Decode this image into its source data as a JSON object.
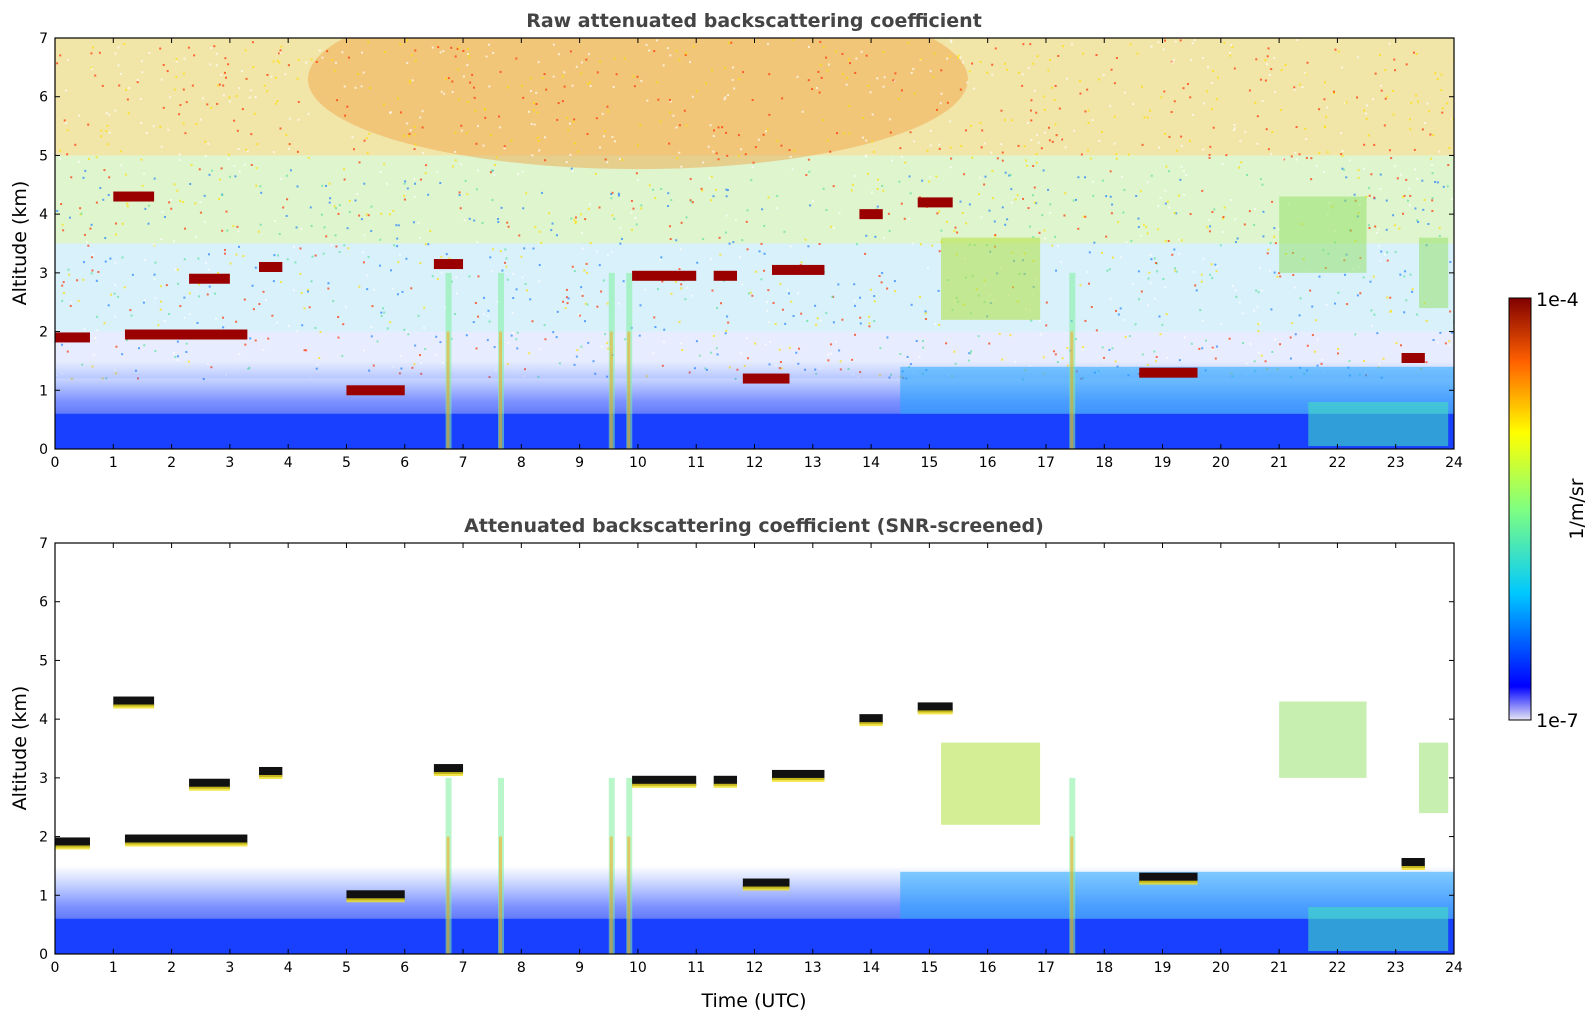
{
  "chart_data": [
    {
      "type": "heatmap",
      "title": "Raw attenuated backscattering coefficient",
      "xlabel": "",
      "ylabel": "Altitude (km)",
      "xlim": [
        0,
        24
      ],
      "ylim": [
        0,
        7
      ],
      "x_ticks": [
        "0",
        "1",
        "2",
        "3",
        "4",
        "5",
        "6",
        "7",
        "8",
        "9",
        "10",
        "11",
        "12",
        "13",
        "14",
        "15",
        "16",
        "17",
        "18",
        "19",
        "20",
        "21",
        "22",
        "23",
        "24"
      ],
      "y_ticks": [
        "0",
        "1",
        "2",
        "3",
        "4",
        "5",
        "6",
        "7"
      ],
      "cloud_layers": [
        {
          "t_start": 0.0,
          "t_end": 0.6,
          "alt_km": 1.9
        },
        {
          "t_start": 1.0,
          "t_end": 1.7,
          "alt_km": 4.3
        },
        {
          "t_start": 1.2,
          "t_end": 3.3,
          "alt_km": 1.95
        },
        {
          "t_start": 2.3,
          "t_end": 3.0,
          "alt_km": 2.9
        },
        {
          "t_start": 3.5,
          "t_end": 3.9,
          "alt_km": 3.1
        },
        {
          "t_start": 5.0,
          "t_end": 6.0,
          "alt_km": 1.0
        },
        {
          "t_start": 6.5,
          "t_end": 7.0,
          "alt_km": 3.15
        },
        {
          "t_start": 9.9,
          "t_end": 11.0,
          "alt_km": 2.95
        },
        {
          "t_start": 11.3,
          "t_end": 11.7,
          "alt_km": 2.95
        },
        {
          "t_start": 11.8,
          "t_end": 12.6,
          "alt_km": 1.2
        },
        {
          "t_start": 12.3,
          "t_end": 13.2,
          "alt_km": 3.05
        },
        {
          "t_start": 13.8,
          "t_end": 14.2,
          "alt_km": 4.0
        },
        {
          "t_start": 14.8,
          "t_end": 15.4,
          "alt_km": 4.2
        },
        {
          "t_start": 18.6,
          "t_end": 19.6,
          "alt_km": 1.3
        },
        {
          "t_start": 23.1,
          "t_end": 23.5,
          "alt_km": 1.55
        }
      ]
    },
    {
      "type": "heatmap",
      "title": "Attenuated backscattering coefficient (SNR-screened)",
      "xlabel": "Time (UTC)",
      "ylabel": "Altitude (km)",
      "xlim": [
        0,
        24
      ],
      "ylim": [
        0,
        7
      ],
      "x_ticks": [
        "0",
        "1",
        "2",
        "3",
        "4",
        "5",
        "6",
        "7",
        "8",
        "9",
        "10",
        "11",
        "12",
        "13",
        "14",
        "15",
        "16",
        "17",
        "18",
        "19",
        "20",
        "21",
        "22",
        "23",
        "24"
      ],
      "y_ticks": [
        "0",
        "1",
        "2",
        "3",
        "4",
        "5",
        "6",
        "7"
      ]
    }
  ],
  "colorbar": {
    "label": "1/m/sr",
    "max_label": "1e-4",
    "min_label": "1e-7",
    "scale": "log",
    "colors": [
      "#e6e6f5",
      "#0000ff",
      "#00c8ff",
      "#80ff80",
      "#ffff00",
      "#ff6000",
      "#800000"
    ]
  }
}
